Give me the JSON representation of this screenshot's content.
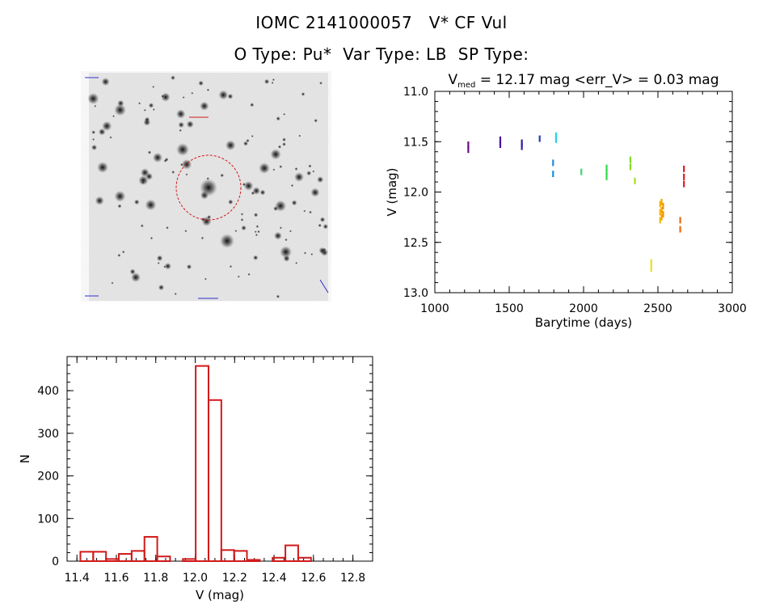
{
  "header": {
    "title_line1": "IOMC 2141000057   V* CF Vul",
    "title_line2": "O Type: Pu*  Var Type: LB  SP Type:"
  },
  "chart_data": [
    {
      "type": "scatter",
      "title_prefix": "V",
      "title_subscript": "med",
      "title_suffix": " = 12.17 mag <err_V> = 0.03 mag",
      "xlabel": "Barytime (days)",
      "ylabel": "V (mag)",
      "xlim": [
        1000,
        3000
      ],
      "ylim": [
        13.0,
        11.0
      ],
      "y_inverted": true,
      "xticks": [
        "1000",
        "1500",
        "2000",
        "2500",
        "3000"
      ],
      "yticks": [
        "11.0",
        "11.5",
        "12.0",
        "12.5",
        "13.0"
      ],
      "xtick_values": [
        1000,
        1500,
        2000,
        2500,
        3000
      ],
      "ytick_values": [
        11.0,
        11.5,
        12.0,
        12.5,
        13.0
      ],
      "points": [
        {
          "x": 1225,
          "y": 11.53,
          "color": "#6a0d83"
        },
        {
          "x": 1225,
          "y": 11.58,
          "color": "#6a0d83"
        },
        {
          "x": 1440,
          "y": 11.48,
          "color": "#4b0fa0"
        },
        {
          "x": 1440,
          "y": 11.53,
          "color": "#4b0fa0"
        },
        {
          "x": 1585,
          "y": 11.51,
          "color": "#3a1aa8"
        },
        {
          "x": 1585,
          "y": 11.55,
          "color": "#3a1aa8"
        },
        {
          "x": 1705,
          "y": 11.47,
          "color": "#1f3fbf"
        },
        {
          "x": 1795,
          "y": 11.71,
          "color": "#1f8fd6"
        },
        {
          "x": 1795,
          "y": 11.82,
          "color": "#1f8fd6"
        },
        {
          "x": 1815,
          "y": 11.44,
          "color": "#22d3e6"
        },
        {
          "x": 1815,
          "y": 11.48,
          "color": "#22d3e6"
        },
        {
          "x": 1985,
          "y": 11.8,
          "color": "#33d96b"
        },
        {
          "x": 2155,
          "y": 11.76,
          "color": "#33d94a"
        },
        {
          "x": 2155,
          "y": 11.8,
          "color": "#33d94a"
        },
        {
          "x": 2155,
          "y": 11.85,
          "color": "#33d94a"
        },
        {
          "x": 2315,
          "y": 11.68,
          "color": "#7ddc1f"
        },
        {
          "x": 2315,
          "y": 11.75,
          "color": "#7ddc1f"
        },
        {
          "x": 2345,
          "y": 11.89,
          "color": "#a8dc1f"
        },
        {
          "x": 2455,
          "y": 12.7,
          "color": "#e8e020"
        },
        {
          "x": 2455,
          "y": 12.76,
          "color": "#e8e020"
        },
        {
          "x": 2515,
          "y": 12.12,
          "color": "#f2b700"
        },
        {
          "x": 2515,
          "y": 12.2,
          "color": "#f2b700"
        },
        {
          "x": 2515,
          "y": 12.28,
          "color": "#f2b700"
        },
        {
          "x": 2525,
          "y": 12.1,
          "color": "#f2a800"
        },
        {
          "x": 2525,
          "y": 12.18,
          "color": "#f2a800"
        },
        {
          "x": 2525,
          "y": 12.25,
          "color": "#f2a800"
        },
        {
          "x": 2535,
          "y": 12.14,
          "color": "#f29500"
        },
        {
          "x": 2535,
          "y": 12.22,
          "color": "#f29500"
        },
        {
          "x": 2650,
          "y": 12.28,
          "color": "#e86a10"
        },
        {
          "x": 2650,
          "y": 12.37,
          "color": "#e86a10"
        },
        {
          "x": 2675,
          "y": 11.77,
          "color": "#d91c1c"
        },
        {
          "x": 2675,
          "y": 11.85,
          "color": "#d91c1c"
        },
        {
          "x": 2675,
          "y": 11.92,
          "color": "#d91c1c"
        }
      ]
    },
    {
      "type": "bar",
      "histogram": true,
      "xlabel": "V (mag)",
      "ylabel": "N",
      "xlim": [
        11.35,
        12.9
      ],
      "ylim": [
        0,
        480
      ],
      "bar_color": "#d11a1a",
      "bin_width": 0.065,
      "bins": [
        11.45,
        11.515,
        11.58,
        11.645,
        11.71,
        11.775,
        11.84,
        11.905,
        11.97,
        12.035,
        12.1,
        12.165,
        12.23,
        12.295,
        12.36,
        12.425,
        12.49,
        12.555,
        12.62,
        12.685
      ],
      "values": [
        22,
        22,
        5,
        17,
        24,
        57,
        11,
        0,
        5,
        458,
        378,
        26,
        24,
        3,
        0,
        8,
        37,
        8,
        0,
        0
      ],
      "xticks": [
        "11.4",
        "11.6",
        "11.8",
        "12.0",
        "12.2",
        "12.4",
        "12.6",
        "12.8"
      ],
      "xtick_values": [
        11.4,
        11.6,
        11.8,
        12.0,
        12.2,
        12.4,
        12.6,
        12.8
      ],
      "yticks": [
        "0",
        "100",
        "200",
        "300",
        "400"
      ],
      "ytick_values": [
        0,
        100,
        200,
        300,
        400
      ]
    }
  ]
}
